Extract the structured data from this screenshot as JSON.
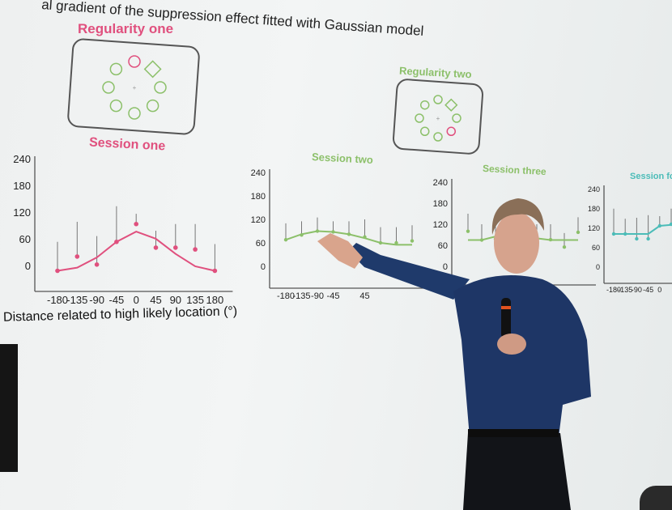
{
  "slide": {
    "title": "al gradient of the suppression effect fitted with Gaussian model",
    "regularity_one": "Regularity one",
    "regularity_two": "Regularity two",
    "x_axis_label": "Distance related to high likely location (°)"
  },
  "chart_data": [
    {
      "type": "line",
      "title": "Session one",
      "color": "#e0507e",
      "x": [
        -180,
        -135,
        -90,
        -45,
        0,
        45,
        90,
        135,
        180
      ],
      "points": [
        -10,
        22,
        4,
        55,
        95,
        42,
        42,
        38,
        -10
      ],
      "error_top": [
        55,
        100,
        68,
        135,
        118,
        80,
        95,
        95,
        50
      ],
      "fit": [
        -10,
        -3,
        20,
        55,
        78,
        62,
        28,
        0,
        -10
      ],
      "yticks": [
        0,
        60,
        120,
        180,
        240
      ],
      "xticks": [
        "-180",
        "-135",
        "-90",
        "-45",
        "0",
        "45",
        "90",
        "135",
        "180"
      ]
    },
    {
      "type": "line",
      "title": "Session two",
      "color": "#8cc06a",
      "x": [
        -180,
        -135,
        -90,
        -45,
        0,
        45,
        90,
        135,
        180
      ],
      "points": [
        68,
        80,
        90,
        88,
        82,
        75,
        60,
        60,
        65
      ],
      "error_top": [
        110,
        115,
        125,
        115,
        115,
        120,
        100,
        100,
        105
      ],
      "fit": [
        68,
        82,
        90,
        88,
        82,
        72,
        60,
        55,
        55
      ],
      "yticks": [
        0,
        60,
        120,
        180,
        240
      ],
      "xticks": [
        "-180",
        "-135",
        "-90",
        "-45",
        "45"
      ]
    },
    {
      "type": "line",
      "title": "Session three",
      "color": "#8cc06a",
      "x": [
        -180,
        -135,
        -90,
        -45,
        0,
        45,
        90,
        135,
        180
      ],
      "points": [
        100,
        75,
        78,
        80,
        80,
        78,
        76,
        55,
        97
      ],
      "error_top": [
        150,
        120,
        120,
        120,
        120,
        120,
        120,
        95,
        140
      ],
      "fit": [
        75,
        75,
        85,
        90,
        88,
        80,
        75,
        75,
        75
      ],
      "yticks": [
        0,
        60,
        120,
        180,
        240
      ],
      "xticks": []
    },
    {
      "type": "line",
      "title": "Session fo",
      "color": "#4bbcb8",
      "x": [
        -180,
        -135,
        -90,
        -45,
        0,
        45
      ],
      "points": [
        100,
        100,
        85,
        85,
        125,
        130
      ],
      "error_top": [
        178,
        147,
        150,
        158,
        155,
        178
      ],
      "fit": [
        100,
        100,
        100,
        100,
        125,
        128
      ],
      "yticks": [
        0,
        60,
        120,
        180,
        240
      ],
      "xticks": [
        "-180",
        "-135",
        "-90",
        "-45",
        "0"
      ]
    }
  ]
}
